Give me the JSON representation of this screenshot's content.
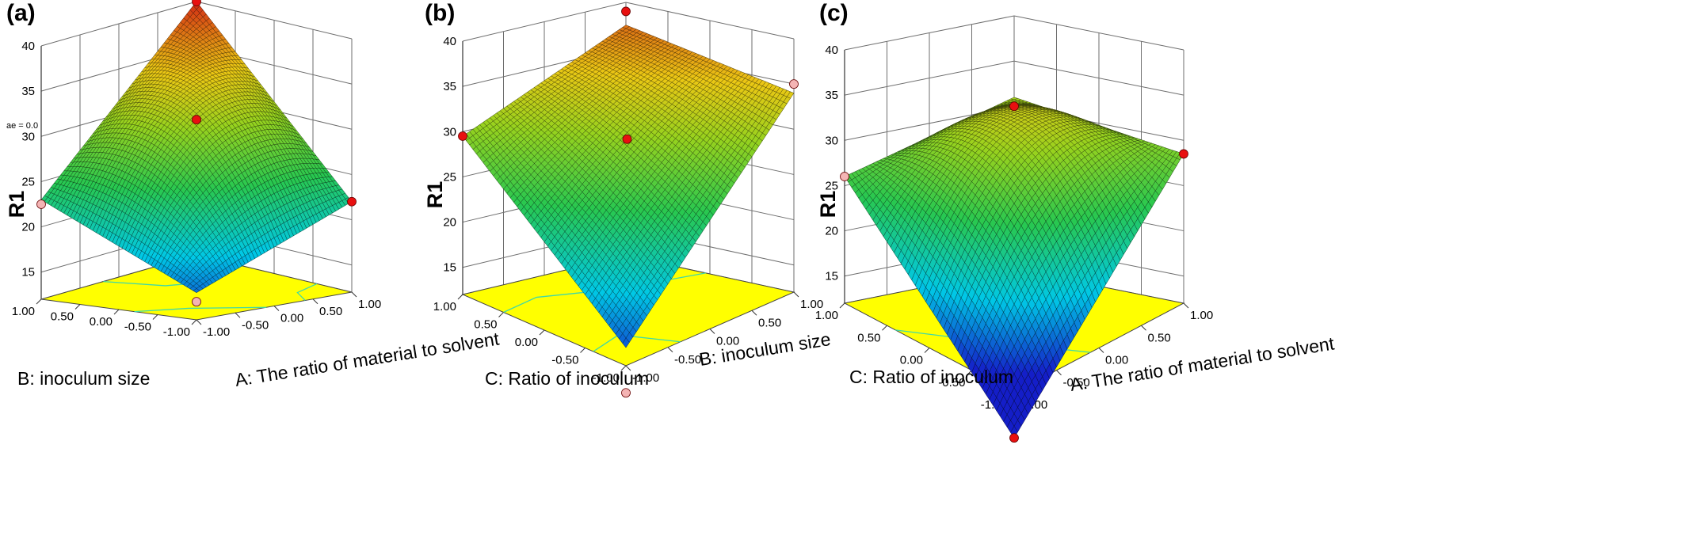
{
  "chart_data": [
    {
      "type": "surface3d",
      "panel_label": "(a)",
      "zlabel": "R1",
      "xlabel": "A: The ratio of material to solvent",
      "ylabel": "B: inoculum size",
      "x_ticks": [
        "-1.00",
        "-0.50",
        "0.00",
        "0.50",
        "1.00"
      ],
      "y_ticks": [
        "-1.00",
        "-0.50",
        "0.00",
        "0.50",
        "1.00"
      ],
      "z_ticks": [
        "15",
        "20",
        "25",
        "30",
        "35",
        "40"
      ],
      "zlim": [
        12,
        40
      ],
      "annotation": "ae = 0.0",
      "corner_values": {
        "x-1_y-1": 15,
        "x1_y-1": 22,
        "x-1_y1": 23,
        "x1_y1": 40
      },
      "center_value": 31,
      "design_points": [
        {
          "x": 1,
          "y": 1,
          "z": 40,
          "color": "#e81010"
        },
        {
          "x": 0,
          "y": 0,
          "z": 31,
          "color": "#e81010"
        },
        {
          "x": 1,
          "y": -1,
          "z": 22,
          "color": "#e81010"
        },
        {
          "x": -1,
          "y": 1,
          "z": 22.5,
          "color": "#f4b4b4"
        },
        {
          "x": -1,
          "y": -1,
          "z": 14,
          "color": "#f4b4b4"
        }
      ]
    },
    {
      "type": "surface3d",
      "panel_label": "(b)",
      "zlabel": "R1",
      "xlabel": "B: inoculum size",
      "ylabel": "C: Ratio of inoculum",
      "x_ticks": [
        "-1.00",
        "-0.50",
        "0.00",
        "0.50",
        "1.00"
      ],
      "y_ticks": [
        "-1.00",
        "-0.50",
        "0.00",
        "0.50",
        "1.00"
      ],
      "z_ticks": [
        "15",
        "20",
        "25",
        "30",
        "35",
        "40"
      ],
      "zlim": [
        12,
        40
      ],
      "corner_values": {
        "x-1_y-1": 14,
        "x1_y-1": 34,
        "x-1_y1": 29.5,
        "x1_y1": 37.5
      },
      "center_value": 30,
      "design_points": [
        {
          "x": 1,
          "y": 1,
          "z": 39,
          "color": "#e81010"
        },
        {
          "x": 0,
          "y": 0,
          "z": 30,
          "color": "#e81010"
        },
        {
          "x": -1,
          "y": 1,
          "z": 29.5,
          "color": "#e81010"
        },
        {
          "x": 1,
          "y": -1,
          "z": 35,
          "color": "#f4b4b4"
        },
        {
          "x": -1,
          "y": -1,
          "z": 9,
          "color": "#f4b4b4"
        }
      ]
    },
    {
      "type": "surface3d",
      "panel_label": "(c)",
      "zlabel": "R1",
      "xlabel": "A: The ratio of material to solvent",
      "ylabel": "C: Ratio of inoculum",
      "x_ticks": [
        "-1.00",
        "-0.50",
        "0.00",
        "0.50",
        "1.00"
      ],
      "y_ticks": [
        "-1.00",
        "-0.50",
        "0.00",
        "0.50",
        "1.00"
      ],
      "z_ticks": [
        "15",
        "20",
        "25",
        "30",
        "35",
        "40"
      ],
      "zlim": [
        12,
        40
      ],
      "corner_values": {
        "x-1_y-1": 7,
        "x1_y-1": 28.5,
        "x-1_y1": 26,
        "x1_y1": 31
      },
      "center_value": 30.5,
      "design_points": [
        {
          "x": 1,
          "y": 1,
          "z": 30,
          "color": "#e81010"
        },
        {
          "x": 1,
          "y": -1,
          "z": 28.5,
          "color": "#e81010"
        },
        {
          "x": -1,
          "y": -1,
          "z": 7,
          "color": "#e81010"
        },
        {
          "x": -1,
          "y": 1,
          "z": 26,
          "color": "#f4b4b4"
        }
      ]
    }
  ]
}
